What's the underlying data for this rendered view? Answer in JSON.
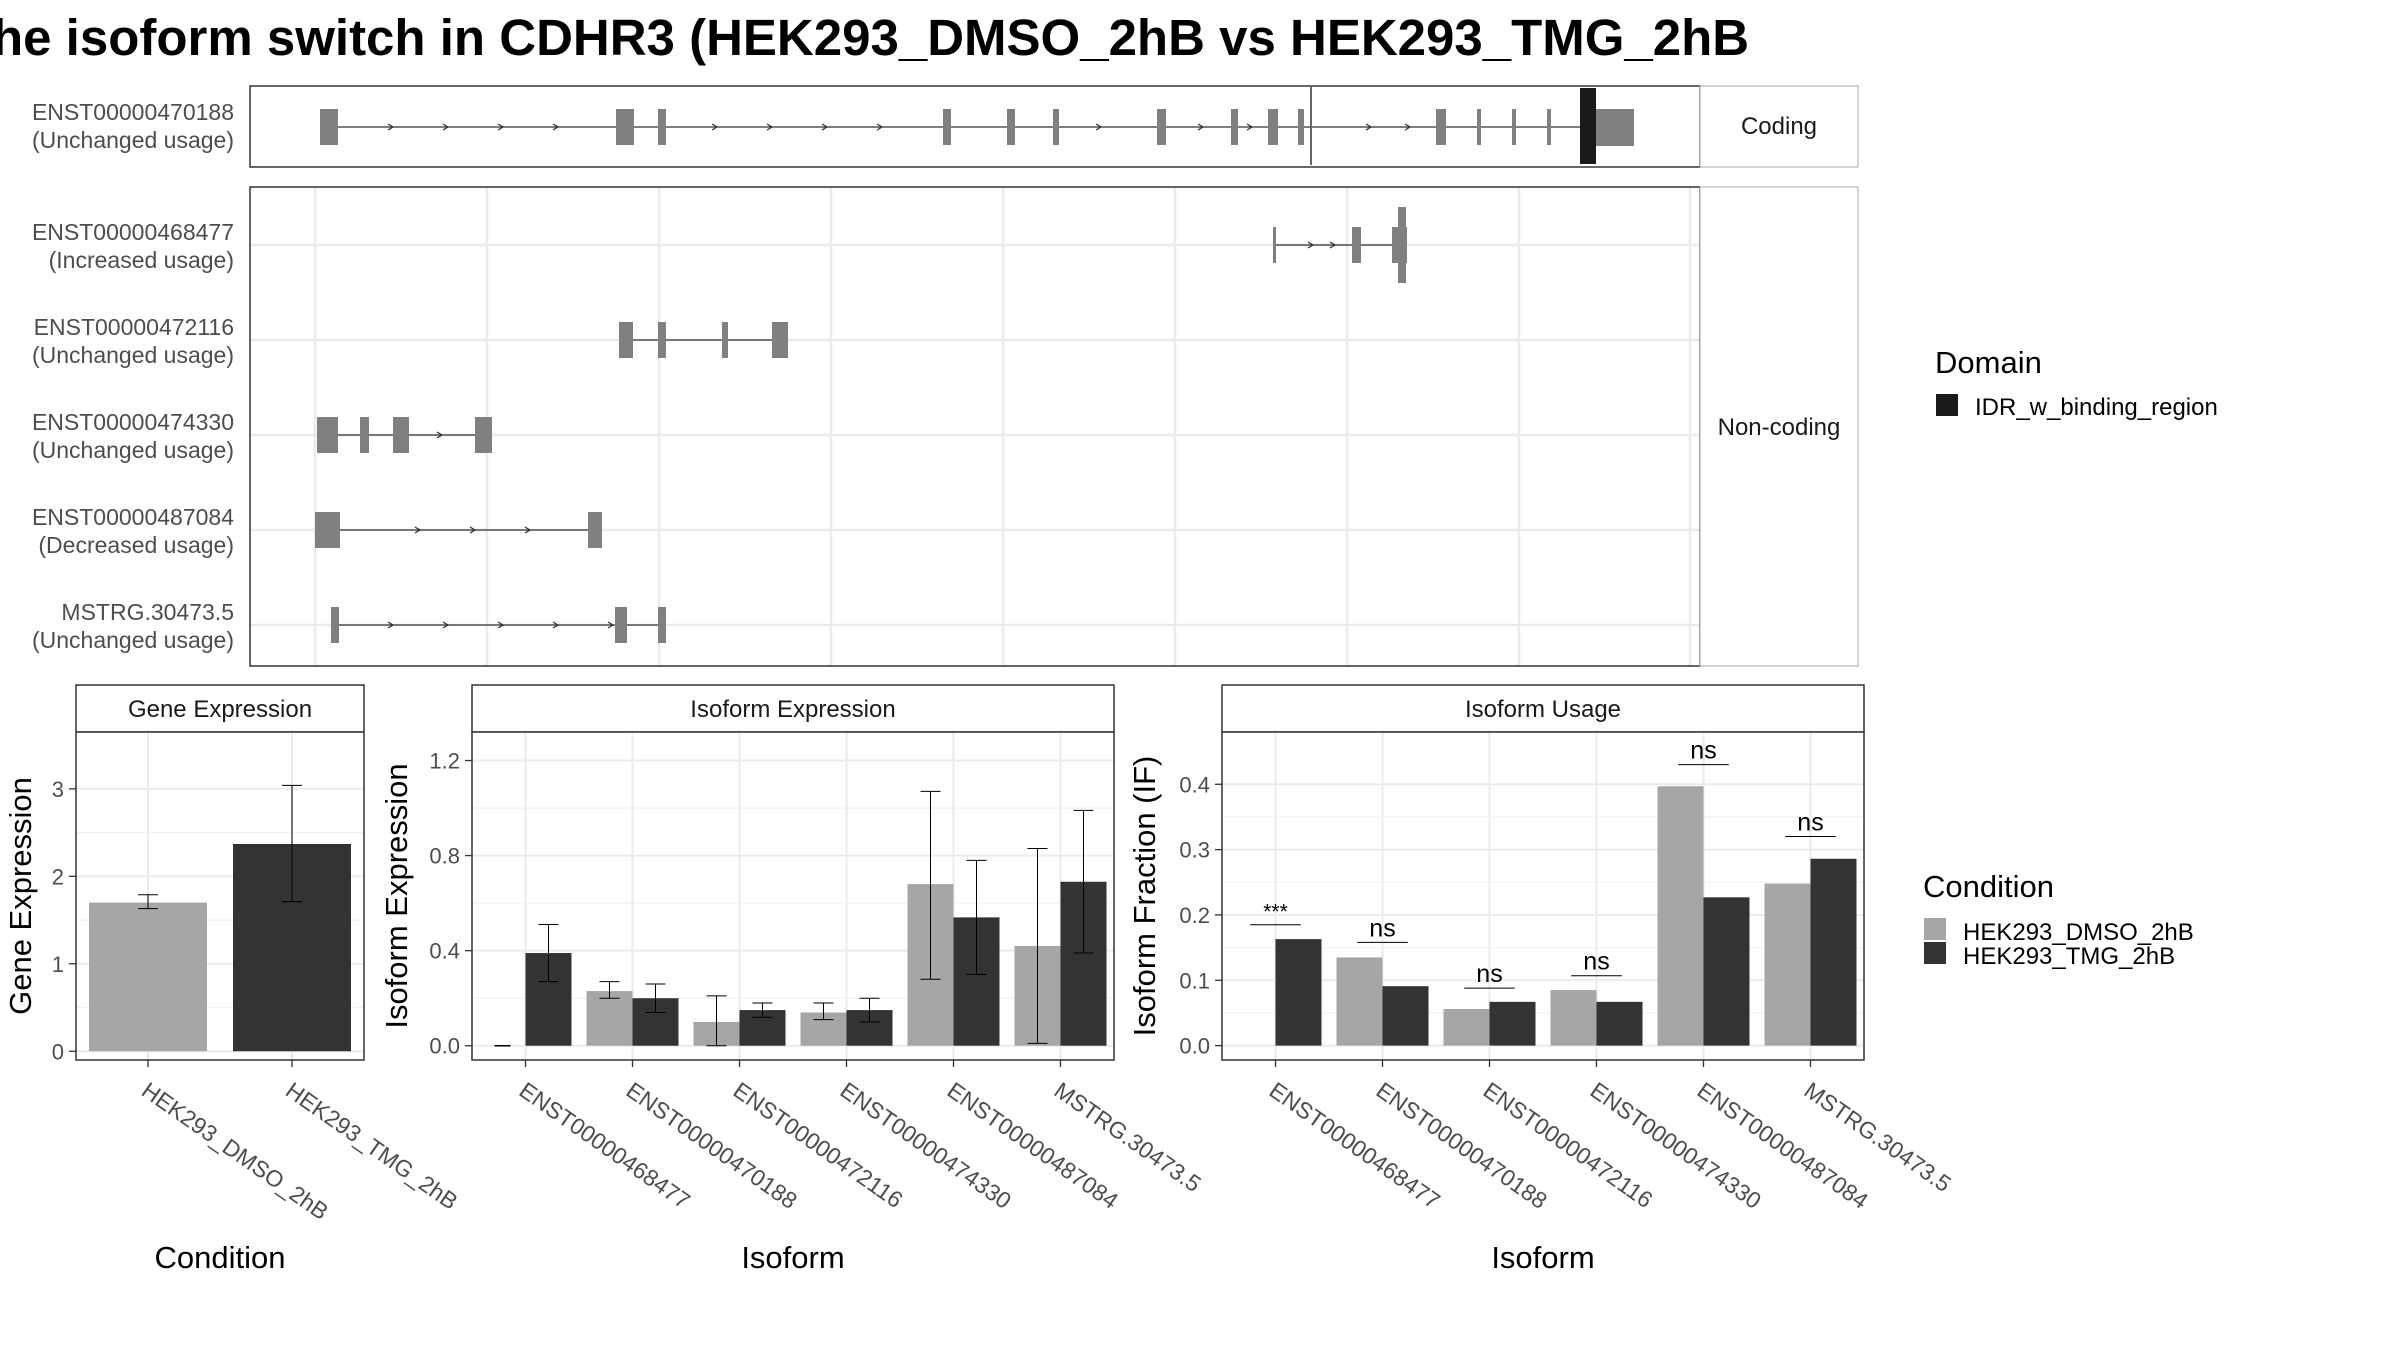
{
  "title": "he isoform switch in CDHR3 (HEK293_DMSO_2hB vs HEK293_TMG_2hB",
  "colors": {
    "dmso": "#a6a6a6",
    "tmg": "#333333",
    "exon": "#808080",
    "domain": "#1a1a1a",
    "grid": "#ebebeb",
    "panel_border": "#333333",
    "strip_fill": "#ffffff"
  },
  "structure": {
    "facet_coding": "Coding",
    "facet_noncoding": "Non-coding",
    "coding": [
      {
        "id": "ENST00000470188",
        "usage": "(Unchanged usage)"
      }
    ],
    "noncoding": [
      {
        "id": "ENST00000468477",
        "usage": "(Increased usage)"
      },
      {
        "id": "ENST00000472116",
        "usage": "(Unchanged usage)"
      },
      {
        "id": "ENST00000474330",
        "usage": "(Unchanged usage)"
      },
      {
        "id": "ENST00000487084",
        "usage": "(Decreased usage)"
      },
      {
        "id": "MSTRG.30473.5",
        "usage": "(Unchanged usage)"
      }
    ]
  },
  "legend_domain": {
    "title": "Domain",
    "items": [
      {
        "label": "IDR_w_binding_region"
      }
    ]
  },
  "legend_condition": {
    "title": "Condition",
    "items": [
      {
        "label": "HEK293_DMSO_2hB"
      },
      {
        "label": "HEK293_TMG_2hB"
      }
    ]
  },
  "chart_data": [
    {
      "type": "bar",
      "title": "Gene Expression",
      "xlabel": "Condition",
      "ylabel": "Gene Expression",
      "categories": [
        "HEK293_DMSO_2hB",
        "HEK293_TMG_2hB"
      ],
      "values": [
        1.7,
        2.37
      ],
      "errors": [
        [
          1.63,
          1.79
        ],
        [
          1.71,
          3.04
        ]
      ],
      "ylim": [
        -0.1,
        3.65
      ],
      "yticks": [
        0,
        1,
        2,
        3
      ]
    },
    {
      "type": "bar",
      "title": "Isoform Expression",
      "xlabel": "Isoform",
      "ylabel": "Isoform Expression",
      "categories": [
        "ENST00000468477",
        "ENST00000470188",
        "ENST00000472116",
        "ENST00000474330",
        "ENST00000487084",
        "MSTRG.30473.5"
      ],
      "series": [
        {
          "name": "HEK293_DMSO_2hB",
          "values": [
            0.0,
            0.23,
            0.1,
            0.14,
            0.68,
            0.42
          ],
          "errors": [
            [
              0.0,
              0.0
            ],
            [
              0.2,
              0.27
            ],
            [
              0.0,
              0.21
            ],
            [
              0.11,
              0.18
            ],
            [
              0.28,
              1.07
            ],
            [
              0.01,
              0.83
            ]
          ]
        },
        {
          "name": "HEK293_TMG_2hB",
          "values": [
            0.39,
            0.2,
            0.15,
            0.15,
            0.54,
            0.69
          ],
          "errors": [
            [
              0.27,
              0.51
            ],
            [
              0.14,
              0.26
            ],
            [
              0.12,
              0.18
            ],
            [
              0.1,
              0.2
            ],
            [
              0.3,
              0.78
            ],
            [
              0.39,
              0.99
            ]
          ]
        }
      ],
      "ylim": [
        -0.06,
        1.32
      ],
      "yticks": [
        0.0,
        0.4,
        0.8,
        1.2
      ],
      "ytick_labels": [
        "0.0",
        "0.4",
        "0.8",
        "1.2"
      ]
    },
    {
      "type": "bar",
      "title": "Isoform Usage",
      "xlabel": "Isoform",
      "ylabel": "Isoform Fraction (IF)",
      "categories": [
        "ENST00000468477",
        "ENST00000470188",
        "ENST00000472116",
        "ENST00000474330",
        "ENST00000487084",
        "MSTRG.30473.5"
      ],
      "series": [
        {
          "name": "HEK293_DMSO_2hB",
          "values": [
            0.0,
            0.135,
            0.056,
            0.085,
            0.397,
            0.248
          ]
        },
        {
          "name": "HEK293_TMG_2hB",
          "values": [
            0.163,
            0.091,
            0.067,
            0.067,
            0.227,
            0.286
          ]
        }
      ],
      "significance": [
        "***",
        "ns",
        "ns",
        "ns",
        "ns",
        "ns"
      ],
      "sig_height": [
        0.185,
        0.158,
        0.088,
        0.107,
        0.43,
        0.32
      ],
      "ylim": [
        -0.022,
        0.48
      ],
      "yticks": [
        0.0,
        0.1,
        0.2,
        0.3,
        0.4
      ],
      "ytick_labels": [
        "0.0",
        "0.1",
        "0.2",
        "0.3",
        "0.4"
      ]
    }
  ]
}
